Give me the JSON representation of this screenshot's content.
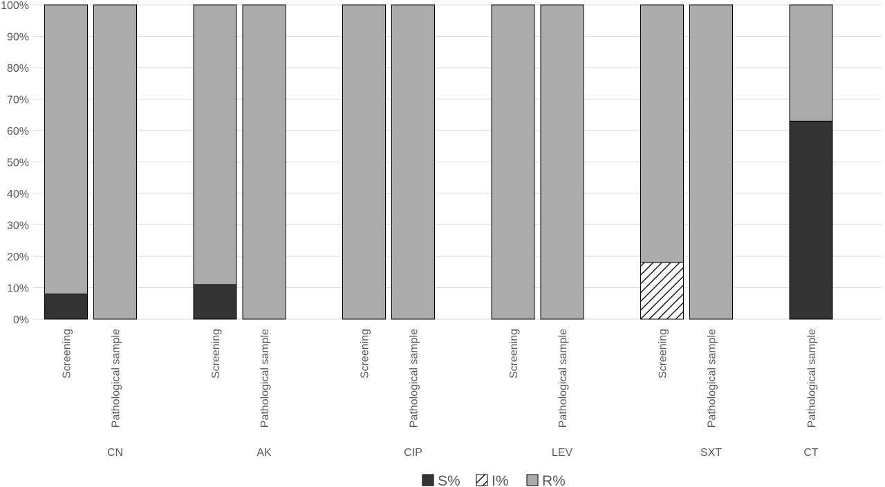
{
  "chart_data": {
    "type": "bar",
    "stacked": true,
    "y_ticks": [
      "0%",
      "10%",
      "20%",
      "30%",
      "40%",
      "50%",
      "60%",
      "70%",
      "80%",
      "90%",
      "100%"
    ],
    "ylim": [
      0,
      100
    ],
    "grid": true,
    "legend_position": "bottom",
    "series": [
      {
        "name": "S%",
        "color": "#333333",
        "pattern": "solid"
      },
      {
        "name": "I%",
        "color": "#ffffff",
        "pattern": "hatch"
      },
      {
        "name": "R%",
        "color": "#ababab",
        "pattern": "solid"
      }
    ],
    "groups": [
      {
        "label": "CN",
        "bars": [
          {
            "category": "Screening",
            "S": 8,
            "I": 0,
            "R": 92
          },
          {
            "category": "Pathological sample",
            "S": 0,
            "I": 0,
            "R": 100
          }
        ]
      },
      {
        "label": "AK",
        "bars": [
          {
            "category": "Screening",
            "S": 11,
            "I": 0,
            "R": 89
          },
          {
            "category": "Pathological sample",
            "S": 0,
            "I": 0,
            "R": 100
          }
        ]
      },
      {
        "label": "CIP",
        "bars": [
          {
            "category": "Screening",
            "S": 0,
            "I": 0,
            "R": 100
          },
          {
            "category": "Pathological sample",
            "S": 0,
            "I": 0,
            "R": 100
          }
        ]
      },
      {
        "label": "LEV",
        "bars": [
          {
            "category": "Screening",
            "S": 0,
            "I": 0,
            "R": 100
          },
          {
            "category": "Pathological sample",
            "S": 0,
            "I": 0,
            "R": 100
          }
        ]
      },
      {
        "label": "SXT",
        "bars": [
          {
            "category": "Screening",
            "S": 0,
            "I": 18,
            "R": 82
          },
          {
            "category": "Pathological sample",
            "S": 0,
            "I": 0,
            "R": 100
          }
        ]
      },
      {
        "label": "CT",
        "bars": [
          {
            "category": "Pathological sample",
            "S": 63,
            "I": 0,
            "R": 37
          }
        ]
      }
    ]
  }
}
